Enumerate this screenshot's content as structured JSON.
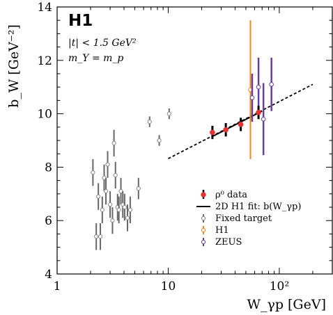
{
  "chart_data": {
    "type": "scatter",
    "title": "H1",
    "xlabel": "W_γp [GeV]",
    "ylabel": "b_W [GeV⁻²]",
    "x_scale": "log",
    "xlim": [
      1,
      300
    ],
    "ylim": [
      4,
      14
    ],
    "y_ticks": [
      4,
      6,
      8,
      10,
      12,
      14
    ],
    "x_tick_labels": [
      {
        "value": 1,
        "label": "1"
      },
      {
        "value": 10,
        "label": "10"
      },
      {
        "value": 100,
        "label": "10²"
      }
    ],
    "annotations": [
      "|t| < 1.5 GeV²",
      "m_Y = m_p"
    ],
    "legend_position": "bottom-right",
    "grid": false,
    "series": [
      {
        "name": "ρ⁰ data",
        "color": "#e8322d",
        "marker": "filled-circle",
        "x": [
          25,
          33,
          45,
          65
        ],
        "y": [
          9.3,
          9.4,
          9.6,
          10.05
        ],
        "yerr": [
          0.25,
          0.25,
          0.25,
          0.25
        ]
      },
      {
        "name": "2D H1 fit: b(W_γp)",
        "color": "#000000",
        "marker": "line",
        "x": [
          25,
          70
        ],
        "y": [
          9.15,
          10.1
        ],
        "extrapolation_x": [
          10,
          200
        ],
        "extrapolation_y": [
          8.32,
          11.1
        ]
      },
      {
        "name": "Fixed target",
        "color": "#666666",
        "marker": "open-circle",
        "x": [
          2.1,
          2.25,
          2.35,
          2.45,
          2.55,
          2.65,
          2.75,
          2.85,
          3.0,
          3.15,
          3.25,
          3.35,
          3.5,
          3.6,
          3.75,
          3.9,
          4.05,
          4.3,
          4.55,
          5.4,
          6.8,
          8.3,
          10.2
        ],
        "y": [
          7.8,
          5.4,
          6.9,
          5.4,
          6.4,
          7.6,
          7.1,
          8.1,
          6.6,
          6.0,
          8.9,
          7.7,
          6.5,
          6.4,
          7.1,
          6.6,
          6.5,
          6.1,
          6.4,
          7.2,
          9.7,
          9.0,
          10.0
        ],
        "yerr": [
          0.5,
          0.5,
          0.5,
          0.5,
          0.5,
          0.5,
          0.5,
          0.5,
          0.5,
          0.5,
          0.5,
          0.5,
          0.5,
          0.5,
          0.5,
          0.5,
          0.5,
          0.5,
          0.5,
          0.4,
          0.2,
          0.2,
          0.2
        ]
      },
      {
        "name": "H1",
        "color": "#e88a1a",
        "marker": "open-circle",
        "x": [
          55
        ],
        "y": [
          10.9
        ],
        "y_err_low": [
          2.6
        ],
        "y_err_high": [
          2.6
        ]
      },
      {
        "name": "ZEUS",
        "color": "#6a3d9a",
        "marker": "open-circle",
        "x": [
          57,
          65,
          72,
          85
        ],
        "y": [
          10.6,
          11.0,
          9.8,
          11.1
        ],
        "y_err_low": [
          0.9,
          1.1,
          1.35,
          1.0
        ],
        "y_err_high": [
          0.9,
          1.1,
          1.35,
          1.0
        ]
      }
    ]
  }
}
